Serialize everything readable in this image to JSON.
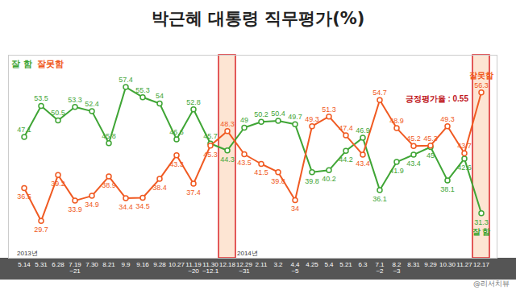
{
  "chart_data": {
    "type": "line",
    "title": "박근혜 대통령 직무평가(%)",
    "categories": [
      "5.14",
      "5.31",
      "6.28",
      "7.19~21",
      "7.30",
      "8.21",
      "9.9",
      "9.16",
      "9.28",
      "10.27",
      "11.19~20",
      "11.30~12.1",
      "12.18",
      "12.29~31",
      "2.11",
      "3.2",
      "4.4~5",
      "4.25",
      "5.4",
      "5.21",
      "6.3",
      "7.1~2",
      "8.2~3",
      "8.31",
      "9.29",
      "10.30",
      "11.27",
      "12.17"
    ],
    "series": [
      {
        "name": "잘 함",
        "color": "#3fa535",
        "values": [
          47.1,
          53.5,
          50.5,
          53.3,
          52.4,
          45.8,
          57.4,
          55.3,
          54.0,
          46.6,
          52.8,
          45.7,
          44.3,
          49.0,
          50.2,
          50.4,
          49.7,
          39.8,
          40.2,
          44.2,
          46.9,
          36.1,
          41.9,
          43.4,
          45.0,
          38.1,
          42.6,
          31.3
        ]
      },
      {
        "name": "잘못함",
        "color": "#f05a22",
        "values": [
          36.5,
          29.7,
          39.2,
          33.9,
          34.9,
          38.9,
          34.4,
          34.5,
          38.4,
          43.3,
          37.4,
          45.3,
          48.3,
          43.5,
          41.5,
          39.8,
          34.0,
          49.3,
          51.3,
          47.4,
          43.4,
          54.7,
          48.9,
          45.2,
          45.3,
          49.3,
          43.7,
          56.3
        ]
      }
    ],
    "ylim": [
      22,
      64
    ],
    "tick_labels": "x",
    "grid": false,
    "data_labels": true,
    "marker": "circle",
    "legend": "top-left",
    "highlight": [
      "12.18",
      "12.17"
    ],
    "annotations": [
      {
        "text": "긍정평가율 : 0.55",
        "x": "12.17"
      }
    ],
    "x_groups": [
      {
        "label": "2013년",
        "start": "5.14"
      },
      {
        "label": "2014년",
        "start": "12.29~31"
      }
    ],
    "source": "@리서치뷰"
  }
}
